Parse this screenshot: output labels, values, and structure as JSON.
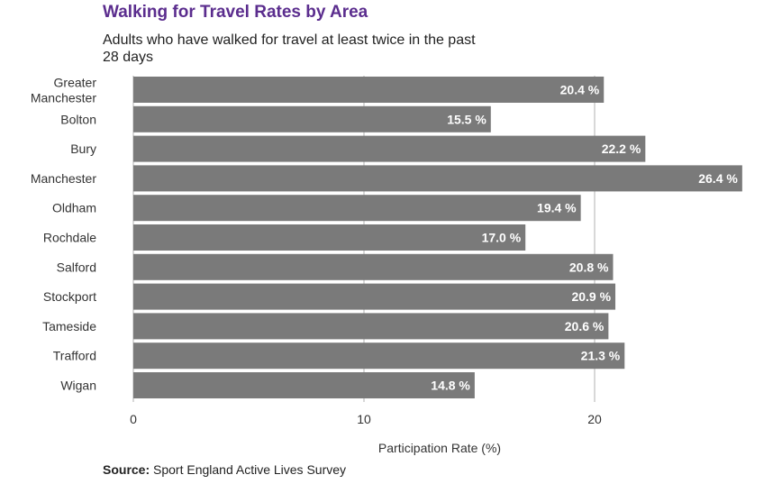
{
  "title": "Walking for Travel Rates by Area",
  "subtitle": "Adults who have walked for travel at least twice in the past 28 days",
  "source": {
    "label": "Source:",
    "text": "Sport England Active Lives Survey"
  },
  "colors": {
    "bar": "#7a7a7a",
    "title": "#5b2d8e",
    "value_label": "#ffffff",
    "grid": "#b0b0b0",
    "text": "#333333"
  },
  "chart_data": {
    "type": "bar",
    "orientation": "horizontal",
    "title": "Walking for Travel Rates by Area",
    "subtitle": "Adults who have walked for travel at least twice in the past 28 days",
    "xlabel": "Participation Rate (%)",
    "ylabel": "",
    "categories": [
      "Greater Manchester",
      "Bolton",
      "Bury",
      "Manchester",
      "Oldham",
      "Rochdale",
      "Salford",
      "Stockport",
      "Tameside",
      "Trafford",
      "Wigan"
    ],
    "values": [
      20.4,
      15.5,
      22.2,
      26.4,
      19.4,
      17.0,
      20.8,
      20.9,
      20.6,
      21.3,
      14.8
    ],
    "value_labels": [
      "20.4 %",
      "15.5 %",
      "22.2 %",
      "26.4 %",
      "19.4 %",
      "17.0 %",
      "20.8 %",
      "20.9 %",
      "20.6 %",
      "21.3 %",
      "14.8 %"
    ],
    "xlim": [
      0,
      26.5
    ],
    "xticks": [
      0,
      10,
      20
    ],
    "xtick_labels": [
      "0",
      "10",
      "20"
    ],
    "grid": true,
    "legend": "none"
  }
}
